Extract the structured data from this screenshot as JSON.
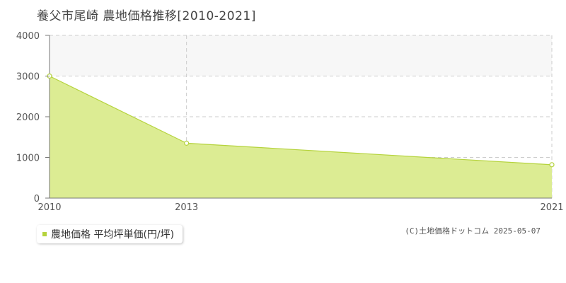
{
  "title": "養父市尾崎 農地価格推移[2010-2021]",
  "legend": {
    "label": "農地価格 平均坪単価(円/坪)"
  },
  "credit": "(C)土地価格ドットコム 2025-05-07",
  "colors": {
    "fill": "#dcec93",
    "line": "#b5d33d",
    "band": "#f7f7f7",
    "grid": "#cccccc",
    "axis": "#777777"
  },
  "chart_data": {
    "type": "area",
    "x": [
      2010,
      2013,
      2021
    ],
    "series": [
      {
        "name": "農地価格 平均坪単価(円/坪)",
        "values": [
          3000,
          1350,
          820
        ]
      }
    ],
    "xlim": [
      2010,
      2021
    ],
    "ylim": [
      0,
      4000
    ],
    "yticks": [
      "0",
      "1000",
      "2000",
      "3000",
      "4000"
    ],
    "xticks": [
      "2010",
      "2013",
      "2021"
    ],
    "band": [
      3000,
      4000
    ],
    "grid": true,
    "legend_position": "bottom-left"
  }
}
